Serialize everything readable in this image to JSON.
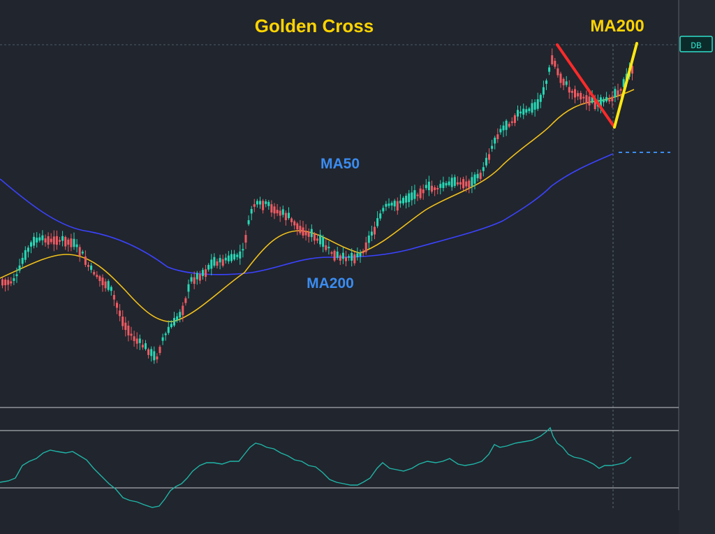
{
  "chart_data": {
    "type": "candlestick",
    "title": "Golden Cross",
    "price_tag": "DB",
    "annotations": {
      "top_right": "MA200",
      "mid_fast": "MA50",
      "mid_slow": "MA200"
    },
    "series": [
      {
        "name": "MA50",
        "color": "#f2c21b"
      },
      {
        "name": "MA200",
        "color": "#3a43ff"
      }
    ],
    "colors": {
      "up": "#26d9b6",
      "down": "#f05a62",
      "title": "#ffd400",
      "annotation_blue": "#3b8cf0",
      "fast_ma": "#f2c21b",
      "slow_ma": "#3a43ff",
      "oscillator": "#1fb5a8",
      "arrow_red": "#ff2a2a",
      "arrow_yellow": "#ffe812"
    },
    "grid": false,
    "legend": "none"
  }
}
